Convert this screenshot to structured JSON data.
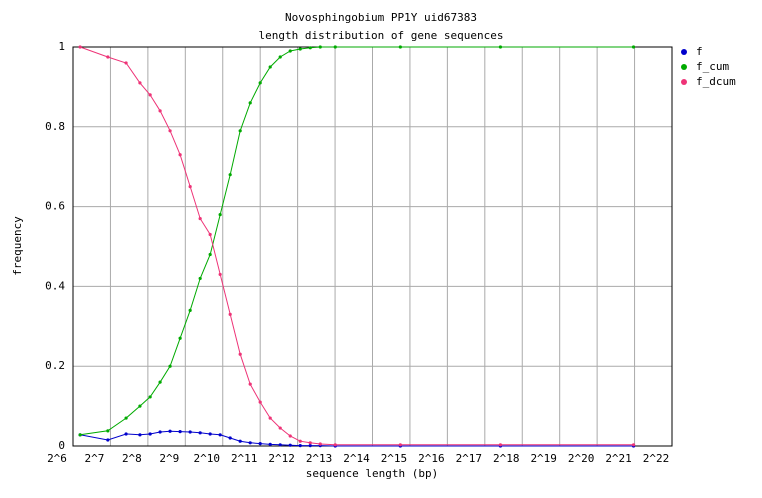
{
  "chart_data": {
    "type": "line",
    "title": "Novosphingobium PP1Y uid67383",
    "subtitle": "length distribution of gene sequences",
    "x_label": "sequence length (bp)",
    "y_label": "frequency",
    "xscale": "log",
    "logbase": 2,
    "x": [
      73,
      122,
      171,
      221,
      267,
      321,
      386,
      465,
      560,
      674,
      811,
      976,
      1175,
      1414,
      1702,
      2048,
      2465,
      2967,
      3571,
      4298,
      5173,
      6227,
      8220,
      27430,
      175000,
      2058000
    ],
    "series": [
      {
        "name": "f",
        "color": "#0000cc",
        "values": [
          0.028,
          0.015,
          0.03,
          0.028,
          0.03,
          0.035,
          0.037,
          0.036,
          0.035,
          0.033,
          0.03,
          0.028,
          0.02,
          0.012,
          0.008,
          0.006,
          0.004,
          0.003,
          0.002,
          0.001,
          0.001,
          0.001,
          0,
          0,
          0,
          0
        ]
      },
      {
        "name": "f_cum",
        "color": "#00aa00",
        "values": [
          0.028,
          0.038,
          0.07,
          0.1,
          0.123,
          0.16,
          0.2,
          0.27,
          0.34,
          0.42,
          0.48,
          0.58,
          0.68,
          0.79,
          0.86,
          0.91,
          0.95,
          0.975,
          0.99,
          0.995,
          0.998,
          1,
          1,
          1,
          1,
          1
        ]
      },
      {
        "name": "f_dcum",
        "color": "#ee3377",
        "values": [
          1,
          0.975,
          0.96,
          0.91,
          0.88,
          0.84,
          0.79,
          0.73,
          0.65,
          0.57,
          0.53,
          0.43,
          0.33,
          0.23,
          0.155,
          0.11,
          0.07,
          0.045,
          0.025,
          0.012,
          0.008,
          0.005,
          0.003,
          0.003,
          0.003,
          0.003
        ]
      }
    ],
    "xlim": [
      64,
      4194304
    ],
    "xticks": [
      {
        "value": 64,
        "label": "2^6"
      },
      {
        "value": 128,
        "label": "2^7"
      },
      {
        "value": 256,
        "label": "2^8"
      },
      {
        "value": 512,
        "label": "2^9"
      },
      {
        "value": 1024,
        "label": "2^10"
      },
      {
        "value": 2048,
        "label": "2^11"
      },
      {
        "value": 4096,
        "label": "2^12"
      },
      {
        "value": 8192,
        "label": "2^13"
      },
      {
        "value": 16384,
        "label": "2^14"
      },
      {
        "value": 32768,
        "label": "2^15"
      },
      {
        "value": 65536,
        "label": "2^16"
      },
      {
        "value": 131072,
        "label": "2^17"
      },
      {
        "value": 262144,
        "label": "2^18"
      },
      {
        "value": 524288,
        "label": "2^19"
      },
      {
        "value": 1048576,
        "label": "2^20"
      },
      {
        "value": 2097152,
        "label": "2^21"
      },
      {
        "value": 4194304,
        "label": "2^22"
      }
    ],
    "ylim": [
      0,
      1
    ],
    "yticks": [
      0,
      0.2,
      0.4,
      0.6,
      0.8,
      1
    ],
    "grid": true,
    "legend": "top-right"
  }
}
